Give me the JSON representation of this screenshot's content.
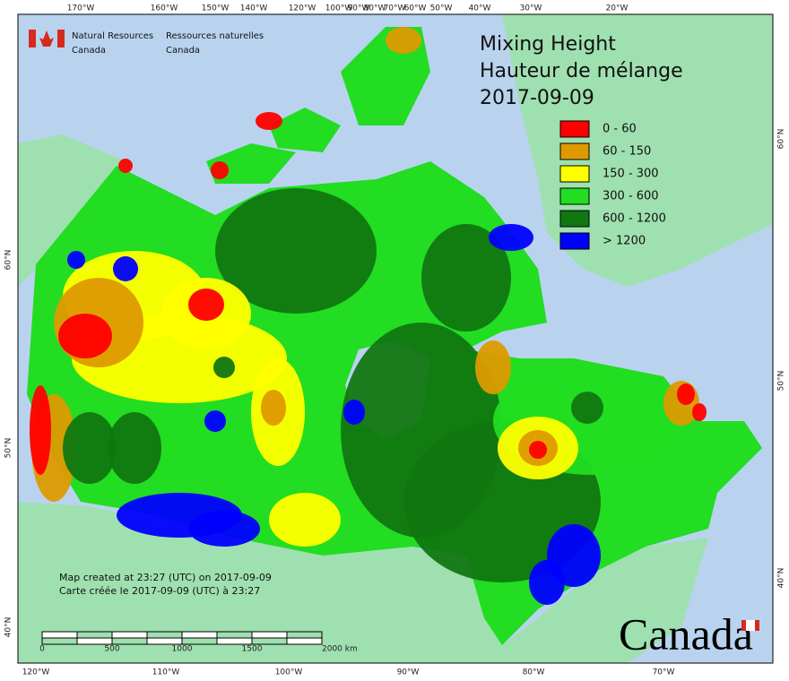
{
  "header": {
    "org_en": [
      "Natural Resources",
      "Canada"
    ],
    "org_fr": [
      "Ressources naturelles",
      "Canada"
    ]
  },
  "title": [
    "Mixing Height",
    "Hauteur de mélange",
    "2017-09-09"
  ],
  "legend": [
    {
      "label": "0 - 60",
      "color": "#ff0000"
    },
    {
      "label": "60 - 150",
      "color": "#dd9a00"
    },
    {
      "label": "150 - 300",
      "color": "#ffff00"
    },
    {
      "label": "300 - 600",
      "color": "#22dd22"
    },
    {
      "label": "600 - 1200",
      "color": "#117711"
    },
    {
      "label": "> 1200",
      "color": "#0000ff"
    }
  ],
  "top_longitudes": [
    "170°W",
    "160°W",
    "150°W",
    "140°W",
    "120°W",
    "100°W",
    "90°W",
    "80°W",
    "70°W",
    "60°W",
    "50°W",
    "40°W",
    "30°W",
    "20°W"
  ],
  "bottom_longitudes": [
    "120°W",
    "110°W",
    "100°W",
    "90°W",
    "80°W",
    "70°W"
  ],
  "left_latitudes": [
    "60°N",
    "50°N",
    "40°N"
  ],
  "right_latitudes": [
    "60°N",
    "50°N",
    "40°N"
  ],
  "credits": [
    "Map created at 23:27 (UTC) on 2017-09-09",
    "Carte créée le 2017-09-09 (UTC) à 23:27"
  ],
  "scale_labels": [
    "0",
    "500",
    "1000",
    "1500",
    "2000 km"
  ],
  "wordmark": "Canada"
}
